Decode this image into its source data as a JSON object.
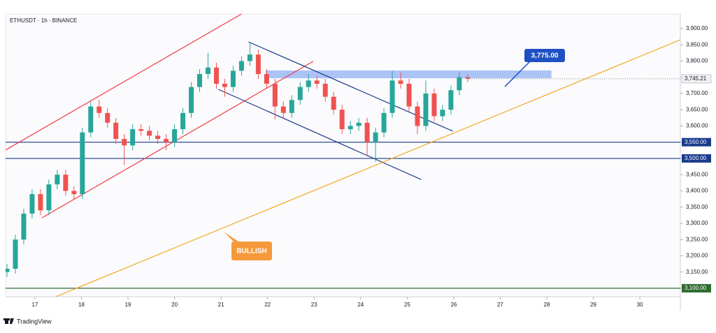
{
  "chart_data": {
    "type": "candlestick",
    "title": "ETHUSDT · 1h · BINANCE",
    "footer": "TradingView",
    "up_color": "#26a69a",
    "down_color": "#ef5350",
    "xlim": [
      16.37,
      30.87
    ],
    "ylim": [
      3074,
      3945
    ],
    "xticks": [
      17,
      18,
      19,
      20,
      21,
      22,
      23,
      24,
      25,
      26,
      27,
      28,
      29,
      30
    ],
    "yticks": [
      {
        "value": 3100,
        "label": "3,100.00"
      },
      {
        "value": 3150,
        "label": "3,150.00"
      },
      {
        "value": 3200,
        "label": "3,200.00"
      },
      {
        "value": 3250,
        "label": "3,250.00"
      },
      {
        "value": 3300,
        "label": "3,300.00"
      },
      {
        "value": 3350,
        "label": "3,350.00"
      },
      {
        "value": 3400,
        "label": "3,400.00"
      },
      {
        "value": 3450,
        "label": "3,450.00"
      },
      {
        "value": 3500,
        "label": "3,500.00"
      },
      {
        "value": 3550,
        "label": "3,550.00"
      },
      {
        "value": 3600,
        "label": "3,600.00"
      },
      {
        "value": 3650,
        "label": "3,650.00"
      },
      {
        "value": 3700,
        "label": "3,700.00"
      },
      {
        "value": 3750,
        "label": "3,750.00"
      },
      {
        "value": 3800,
        "label": "3,800.00"
      },
      {
        "value": 3850,
        "label": "3,850.00"
      },
      {
        "value": 3900,
        "label": "3,900.00"
      }
    ],
    "x": [
      16.4,
      16.58,
      16.76,
      16.94,
      17.12,
      17.3,
      17.48,
      17.66,
      17.84,
      18.02,
      18.2,
      18.38,
      18.56,
      18.74,
      18.92,
      19.1,
      19.28,
      19.46,
      19.64,
      19.82,
      20,
      20.18,
      20.36,
      20.54,
      20.72,
      20.9,
      21.08,
      21.26,
      21.44,
      21.62,
      21.8,
      21.98,
      22.16,
      22.34,
      22.52,
      22.7,
      22.88,
      23.06,
      23.24,
      23.42,
      23.6,
      23.78,
      23.96,
      24.14,
      24.32,
      24.5,
      24.68,
      24.86,
      25.04,
      25.22,
      25.4,
      25.58,
      25.76,
      25.94,
      26.12,
      26.3
    ],
    "open": [
      3150,
      3160,
      3250,
      3330,
      3390,
      3340,
      3420,
      3450,
      3400,
      3390,
      3580,
      3660,
      3640,
      3610,
      3560,
      3540,
      3590,
      3585,
      3570,
      3560,
      3550,
      3590,
      3640,
      3720,
      3760,
      3780,
      3730,
      3720,
      3770,
      3800,
      3820,
      3760,
      3730,
      3660,
      3640,
      3680,
      3720,
      3740,
      3730,
      3690,
      3650,
      3590,
      3600,
      3610,
      3550,
      3580,
      3640,
      3740,
      3730,
      3660,
      3600,
      3700,
      3630,
      3650,
      3710,
      3750
    ],
    "high": [
      3175,
      3265,
      3345,
      3405,
      3405,
      3435,
      3465,
      3465,
      3415,
      3595,
      3675,
      3680,
      3655,
      3625,
      3575,
      3605,
      3605,
      3600,
      3585,
      3575,
      3605,
      3655,
      3735,
      3775,
      3825,
      3795,
      3745,
      3785,
      3815,
      3858,
      3835,
      3775,
      3745,
      3675,
      3695,
      3735,
      3760,
      3755,
      3745,
      3705,
      3665,
      3615,
      3625,
      3625,
      3595,
      3655,
      3770,
      3765,
      3745,
      3675,
      3740,
      3715,
      3665,
      3725,
      3765,
      3760
    ],
    "low": [
      3135,
      3145,
      3235,
      3315,
      3325,
      3325,
      3405,
      3385,
      3375,
      3375,
      3565,
      3625,
      3595,
      3545,
      3480,
      3525,
      3570,
      3555,
      3545,
      3525,
      3535,
      3575,
      3625,
      3705,
      3745,
      3715,
      3690,
      3705,
      3755,
      3785,
      3745,
      3715,
      3620,
      3625,
      3625,
      3665,
      3705,
      3715,
      3675,
      3635,
      3575,
      3575,
      3585,
      3510,
      3490,
      3565,
      3625,
      3715,
      3645,
      3575,
      3585,
      3615,
      3615,
      3635,
      3695,
      3735
    ],
    "close": [
      3160,
      3250,
      3330,
      3390,
      3340,
      3420,
      3450,
      3400,
      3390,
      3580,
      3660,
      3640,
      3610,
      3560,
      3540,
      3590,
      3585,
      3570,
      3560,
      3550,
      3590,
      3640,
      3720,
      3760,
      3780,
      3730,
      3720,
      3770,
      3800,
      3820,
      3760,
      3730,
      3660,
      3640,
      3680,
      3720,
      3740,
      3730,
      3690,
      3650,
      3590,
      3600,
      3610,
      3550,
      3580,
      3640,
      3740,
      3730,
      3660,
      3600,
      3700,
      3630,
      3650,
      3710,
      3750,
      3745.21
    ],
    "last_price": {
      "value": 3745.21,
      "label": "3,745.21"
    },
    "levels": [
      {
        "value": 3550,
        "label": "3,550.00",
        "color": "#1a3a8c"
      },
      {
        "value": 3500,
        "label": "3,500.00",
        "color": "#1a3a8c"
      },
      {
        "value": 3100,
        "label": "3,100.00",
        "color": "#2e6b2e"
      }
    ],
    "trendlines": [
      {
        "x": [
          16.37,
          21.44
        ],
        "y": [
          3526,
          3945
        ],
        "color": "#f23645"
      },
      {
        "x": [
          17.15,
          22.98
        ],
        "y": [
          3317,
          3799
        ],
        "color": "#f23645"
      },
      {
        "x": [
          21.59,
          25.98
        ],
        "y": [
          3859,
          3584
        ],
        "color": "#1a3a8c"
      },
      {
        "x": [
          20.94,
          25.3
        ],
        "y": [
          3713,
          3435
        ],
        "color": "#1a3a8c"
      },
      {
        "x": [
          17.45,
          30.88
        ],
        "y": [
          3074,
          3866
        ],
        "color": "#f5a623"
      }
    ],
    "zone": {
      "x": [
        21.96,
        28.1
      ],
      "y": [
        3747,
        3771
      ],
      "color": "#9db8f5"
    },
    "callouts": [
      {
        "value": 3775,
        "label": "3,775.00",
        "color": "#1e4fc4"
      },
      {
        "text": "BULLISH",
        "color": "#f59a3c"
      }
    ]
  }
}
